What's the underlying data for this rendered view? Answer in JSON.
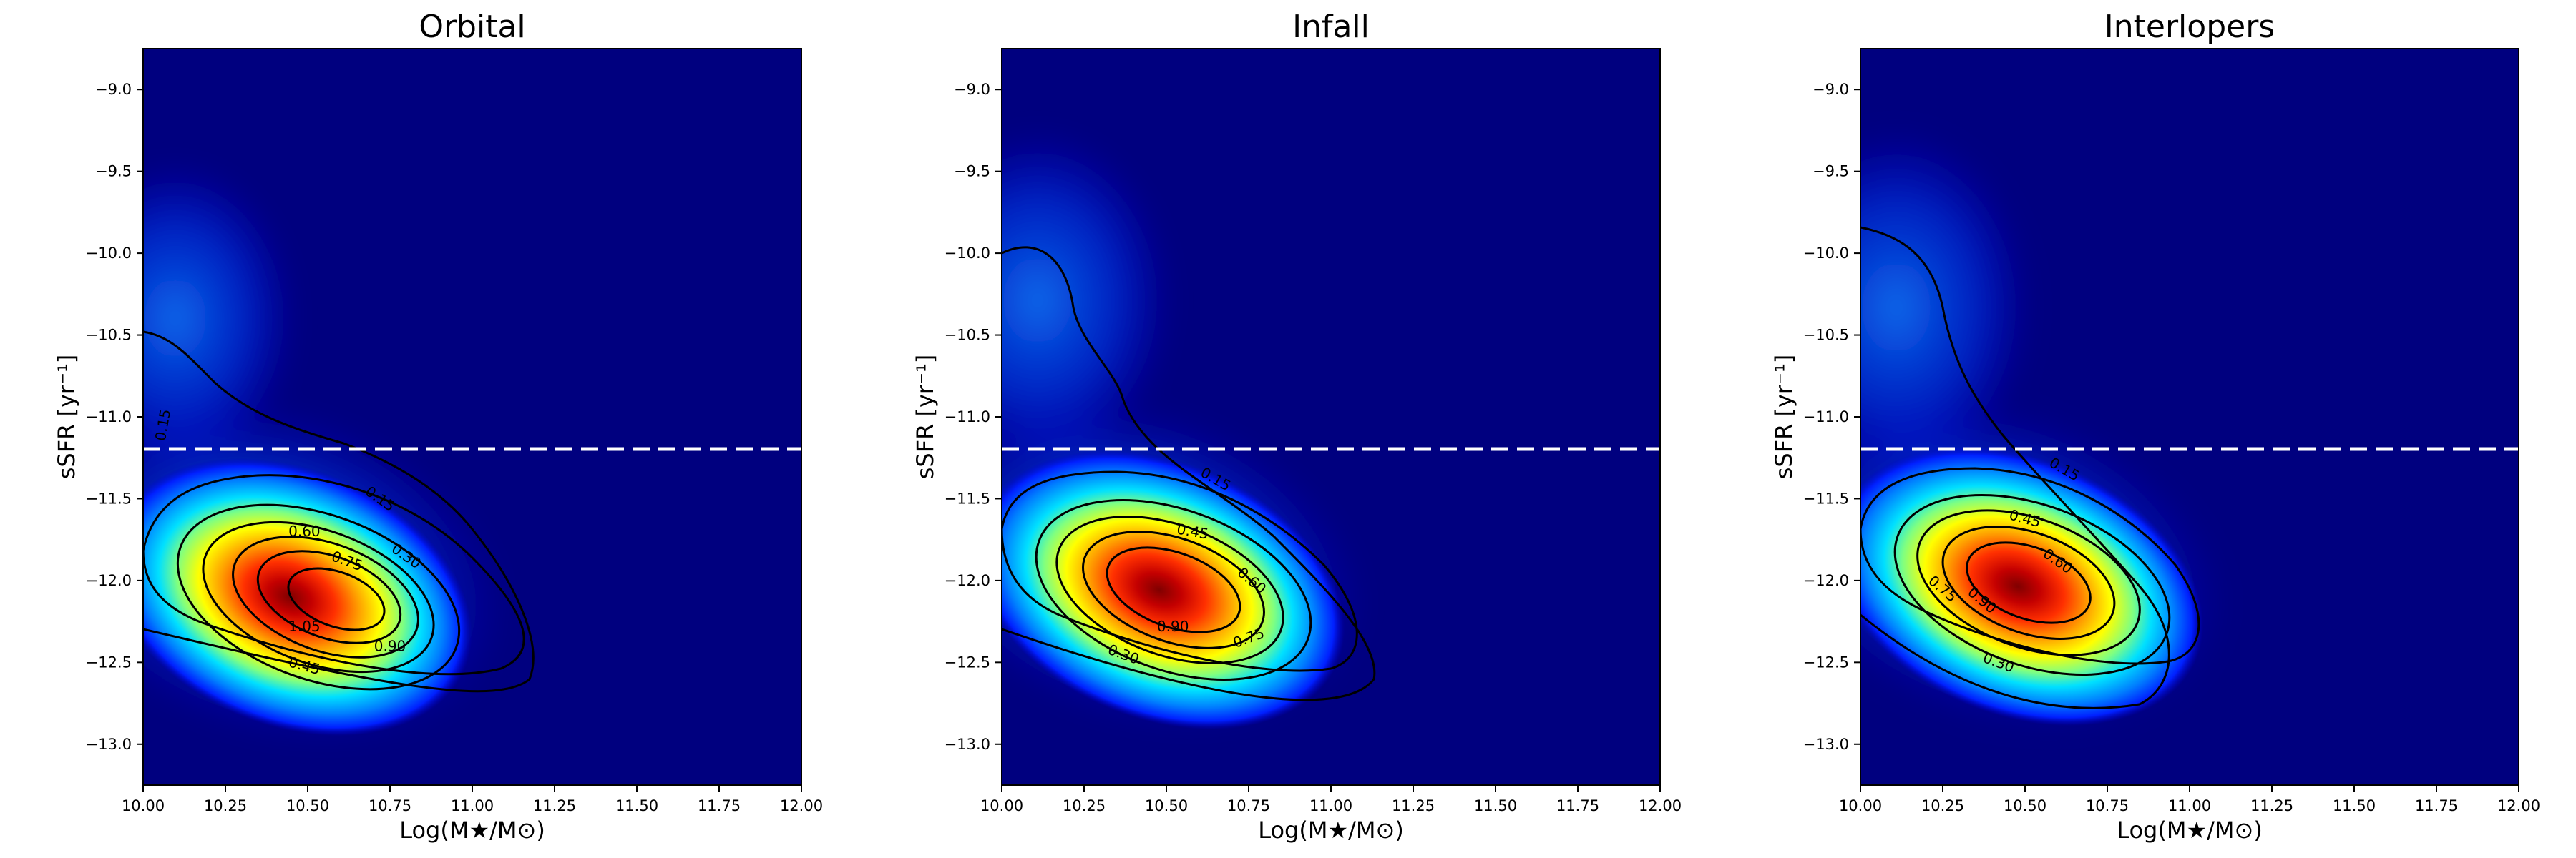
{
  "chart_data": [
    {
      "type": "heatmap",
      "title": "Orbital",
      "xlabel": "Log(M★/M⊙)",
      "ylabel": "sSFR [yr⁻¹]",
      "xlim": [
        10.0,
        12.0
      ],
      "ylim": [
        -13.25,
        -8.75
      ],
      "xticks": [
        "10.00",
        "10.25",
        "10.50",
        "10.75",
        "11.00",
        "11.25",
        "11.50",
        "11.75",
        "12.00"
      ],
      "yticks": [
        "-9.0",
        "-9.5",
        "-10.0",
        "-10.5",
        "-11.0",
        "-11.5",
        "-12.0",
        "-12.5",
        "-13.0"
      ],
      "threshold_line": {
        "y": -11.2,
        "style": "dashed",
        "color": "#ffffff"
      },
      "colormap": "jet",
      "peak": {
        "x": 10.55,
        "y": -12.15
      },
      "contour_levels": [
        "0.15",
        "0.30",
        "0.45",
        "0.60",
        "0.75",
        "0.90",
        "1.05"
      ],
      "contour_labels": [
        {
          "text": "0.15",
          "x": 10.06,
          "y": -11.05,
          "rot": -80
        },
        {
          "text": "0.15",
          "x": 10.72,
          "y": -11.5,
          "rot": 35
        },
        {
          "text": "0.30",
          "x": 10.8,
          "y": -11.85,
          "rot": 35
        },
        {
          "text": "0.60",
          "x": 10.49,
          "y": -11.7,
          "rot": 0
        },
        {
          "text": "0.75",
          "x": 10.62,
          "y": -11.88,
          "rot": 20
        },
        {
          "text": "1.05",
          "x": 10.49,
          "y": -12.28,
          "rot": 0
        },
        {
          "text": "0.90",
          "x": 10.75,
          "y": -12.4,
          "rot": 0
        },
        {
          "text": "0.45",
          "x": 10.49,
          "y": -12.52,
          "rot": 15
        }
      ]
    },
    {
      "type": "heatmap",
      "title": "Infall",
      "xlabel": "Log(M★/M⊙)",
      "ylabel": "sSFR [yr⁻¹]",
      "xlim": [
        10.0,
        12.0
      ],
      "ylim": [
        -13.25,
        -8.75
      ],
      "xticks": [
        "10.00",
        "10.25",
        "10.50",
        "10.75",
        "11.00",
        "11.25",
        "11.50",
        "11.75",
        "12.00"
      ],
      "yticks": [
        "-9.0",
        "-9.5",
        "-10.0",
        "-10.5",
        "-11.0",
        "-11.5",
        "-12.0",
        "-12.5",
        "-13.0"
      ],
      "threshold_line": {
        "y": -11.2,
        "style": "dashed",
        "color": "#ffffff"
      },
      "colormap": "jet",
      "peak": {
        "x": 10.5,
        "y": -12.1
      },
      "contour_levels": [
        "0.15",
        "0.30",
        "0.45",
        "0.60",
        "0.75",
        "0.90"
      ],
      "contour_labels": [
        {
          "text": "0.15",
          "x": 10.65,
          "y": -11.38,
          "rot": 30
        },
        {
          "text": "0.45",
          "x": 10.58,
          "y": -11.7,
          "rot": 10
        },
        {
          "text": "0.60",
          "x": 10.76,
          "y": -12.0,
          "rot": 40
        },
        {
          "text": "0.90",
          "x": 10.52,
          "y": -12.28,
          "rot": 0
        },
        {
          "text": "0.75",
          "x": 10.75,
          "y": -12.35,
          "rot": -20
        },
        {
          "text": "0.30",
          "x": 10.37,
          "y": -12.45,
          "rot": 20
        }
      ]
    },
    {
      "type": "heatmap",
      "title": "Interlopers",
      "xlabel": "Log(M★/M⊙)",
      "ylabel": "sSFR [yr⁻¹]",
      "xlim": [
        10.0,
        12.0
      ],
      "ylim": [
        -13.25,
        -8.75
      ],
      "xticks": [
        "10.00",
        "10.25",
        "10.50",
        "10.75",
        "11.00",
        "11.25",
        "11.50",
        "11.75",
        "12.00"
      ],
      "yticks": [
        "-9.0",
        "-9.5",
        "-10.0",
        "-10.5",
        "-11.0",
        "-11.5",
        "-12.0",
        "-12.5",
        "-13.0"
      ],
      "threshold_line": {
        "y": -11.2,
        "style": "dashed",
        "color": "#ffffff"
      },
      "colormap": "jet",
      "peak": {
        "x": 10.5,
        "y": -12.05
      },
      "contour_levels": [
        "0.15",
        "0.30",
        "0.45",
        "0.60",
        "0.75",
        "0.90"
      ],
      "contour_labels": [
        {
          "text": "0.15",
          "x": 10.62,
          "y": -11.32,
          "rot": 30
        },
        {
          "text": "0.45",
          "x": 10.5,
          "y": -11.62,
          "rot": 15
        },
        {
          "text": "0.60",
          "x": 10.6,
          "y": -11.88,
          "rot": 35
        },
        {
          "text": "0.75",
          "x": 10.25,
          "y": -12.05,
          "rot": 40
        },
        {
          "text": "0.90",
          "x": 10.37,
          "y": -12.12,
          "rot": 40
        },
        {
          "text": "0.30",
          "x": 10.42,
          "y": -12.5,
          "rot": 20
        }
      ]
    }
  ]
}
